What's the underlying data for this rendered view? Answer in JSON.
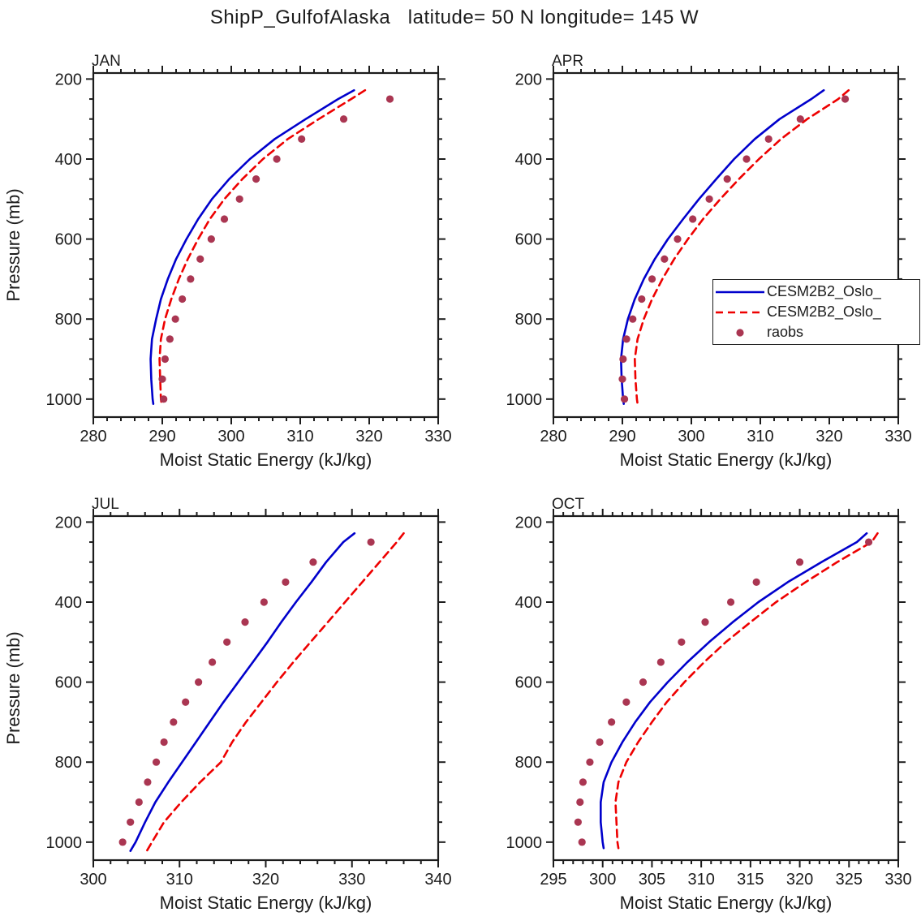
{
  "title": "ShipP_GulfofAlaska   latitude= 50 N longitude= 145 W",
  "colors": {
    "axis": "#1c1c1c",
    "text": "#1c1c1c",
    "model_solid": "#0000CC",
    "model_dashed": "#EE0000",
    "raobs": "#AA3652"
  },
  "legend": {
    "entries": [
      {
        "label": "CESM2B2_Oslo_",
        "style": "solid",
        "color": "#0000CC"
      },
      {
        "label": "CESM2B2_Oslo_",
        "style": "dashed",
        "color": "#EE0000"
      },
      {
        "label": "raobs",
        "style": "dot",
        "color": "#AA3652"
      }
    ]
  },
  "chart_data": [
    {
      "type": "line",
      "panel": "JAN",
      "xlabel": "Moist Static Energy (kJ/kg)",
      "ylabel": "Pressure (mb)",
      "show_ylabel": true,
      "xlim": [
        280,
        330
      ],
      "xtick_step": 10,
      "xminor_step": 2,
      "ylim": [
        185,
        1045
      ],
      "yticks": [
        200,
        400,
        600,
        800,
        1000
      ],
      "ytick_step": 200,
      "yminor_step": 50,
      "series": [
        {
          "name": "CESM2B2_Oslo_",
          "style": "solid",
          "color": "#0000CC",
          "pressure": [
            228,
            250,
            300,
            350,
            400,
            450,
            500,
            550,
            600,
            650,
            700,
            750,
            800,
            850,
            900,
            950,
            1000,
            1012
          ],
          "values": [
            317.8,
            315.5,
            310.8,
            306.3,
            302.7,
            299.7,
            297.2,
            295.2,
            293.5,
            292.0,
            290.8,
            289.8,
            289.1,
            288.5,
            288.3,
            288.4,
            288.6,
            288.7
          ]
        },
        {
          "name": "CESM2B2_Oslo_",
          "style": "dashed",
          "color": "#EE0000",
          "pressure": [
            228,
            250,
            300,
            350,
            400,
            450,
            500,
            550,
            600,
            650,
            700,
            750,
            800,
            850,
            900,
            950,
            1000,
            1012
          ],
          "values": [
            319.4,
            317.4,
            312.7,
            308.2,
            304.6,
            301.6,
            299.0,
            296.9,
            295.2,
            293.7,
            292.4,
            291.3,
            290.4,
            289.8,
            289.6,
            289.7,
            289.8,
            289.9
          ]
        },
        {
          "name": "raobs",
          "style": "dots",
          "color": "#AA3652",
          "pressure": [
            250,
            300,
            350,
            400,
            450,
            500,
            550,
            600,
            650,
            700,
            750,
            800,
            850,
            900,
            950,
            1000
          ],
          "values": [
            323.0,
            316.3,
            310.2,
            306.6,
            303.6,
            301.2,
            299.0,
            297.1,
            295.5,
            294.1,
            292.9,
            291.9,
            291.1,
            290.4,
            290.0,
            290.2
          ]
        }
      ]
    },
    {
      "type": "line",
      "panel": "APR",
      "xlabel": "Moist Static Energy (kJ/kg)",
      "ylabel": "Pressure (mb)",
      "show_ylabel": false,
      "xlim": [
        280,
        330
      ],
      "xtick_step": 10,
      "xminor_step": 2,
      "ylim": [
        185,
        1045
      ],
      "yticks": [
        200,
        400,
        600,
        800,
        1000
      ],
      "ytick_step": 200,
      "yminor_step": 50,
      "series": [
        {
          "name": "CESM2B2_Oslo_",
          "style": "solid",
          "color": "#0000CC",
          "pressure": [
            228,
            250,
            300,
            350,
            400,
            450,
            500,
            550,
            600,
            650,
            700,
            750,
            800,
            850,
            900,
            950,
            1000,
            1012
          ],
          "values": [
            319.2,
            317.4,
            312.8,
            309.2,
            306.2,
            303.6,
            301.1,
            298.8,
            296.6,
            294.7,
            293.1,
            291.8,
            290.8,
            290.1,
            289.8,
            289.9,
            290.1,
            290.2
          ]
        },
        {
          "name": "CESM2B2_Oslo_",
          "style": "dashed",
          "color": "#EE0000",
          "pressure": [
            228,
            250,
            300,
            350,
            400,
            450,
            500,
            550,
            600,
            650,
            700,
            750,
            800,
            850,
            900,
            950,
            1000,
            1012
          ],
          "values": [
            322.8,
            321.3,
            316.8,
            313.0,
            309.8,
            306.9,
            304.2,
            301.7,
            299.5,
            297.5,
            295.8,
            294.3,
            293.1,
            292.2,
            291.8,
            291.9,
            292.1,
            292.2
          ]
        },
        {
          "name": "raobs",
          "style": "dots",
          "color": "#AA3652",
          "pressure": [
            250,
            300,
            350,
            400,
            450,
            500,
            550,
            600,
            650,
            700,
            750,
            800,
            850,
            900,
            950,
            1000
          ],
          "values": [
            322.3,
            315.8,
            311.2,
            308.0,
            305.2,
            302.6,
            300.2,
            298.0,
            296.1,
            294.3,
            292.8,
            291.5,
            290.6,
            290.1,
            290.0,
            290.3
          ]
        }
      ]
    },
    {
      "type": "line",
      "panel": "JUL",
      "xlabel": "Moist Static Energy (kJ/kg)",
      "ylabel": "Pressure (mb)",
      "show_ylabel": true,
      "xlim": [
        300,
        340
      ],
      "xtick_step": 10,
      "xminor_step": 2,
      "ylim": [
        185,
        1045
      ],
      "yticks": [
        200,
        400,
        600,
        800,
        1000
      ],
      "ytick_step": 200,
      "yminor_step": 50,
      "series": [
        {
          "name": "CESM2B2_Oslo_",
          "style": "solid",
          "color": "#0000CC",
          "pressure": [
            228,
            250,
            300,
            350,
            400,
            450,
            500,
            550,
            600,
            650,
            700,
            750,
            800,
            850,
            900,
            950,
            1000,
            1022
          ],
          "values": [
            330.3,
            329.0,
            327.0,
            325.3,
            323.5,
            321.8,
            320.2,
            318.5,
            316.8,
            315.1,
            313.5,
            311.9,
            310.3,
            308.7,
            307.2,
            306.0,
            304.9,
            304.3
          ]
        },
        {
          "name": "CESM2B2_Oslo_",
          "style": "dashed",
          "color": "#EE0000",
          "pressure": [
            228,
            250,
            300,
            350,
            400,
            450,
            500,
            550,
            600,
            650,
            700,
            750,
            800,
            850,
            900,
            950,
            1000,
            1022
          ],
          "values": [
            336.0,
            335.2,
            333.2,
            331.2,
            329.2,
            327.2,
            325.2,
            323.2,
            321.3,
            319.5,
            317.7,
            316.1,
            314.8,
            312.4,
            310.2,
            308.2,
            306.8,
            306.2
          ]
        },
        {
          "name": "raobs",
          "style": "dots",
          "color": "#AA3652",
          "pressure": [
            250,
            300,
            350,
            400,
            450,
            500,
            550,
            600,
            650,
            700,
            750,
            800,
            850,
            900,
            950,
            1000
          ],
          "values": [
            332.2,
            325.5,
            322.3,
            319.8,
            317.6,
            315.5,
            313.8,
            312.2,
            310.7,
            309.3,
            308.2,
            307.3,
            306.3,
            305.3,
            304.3,
            303.4
          ]
        }
      ]
    },
    {
      "type": "line",
      "panel": "OCT",
      "xlabel": "Moist Static Energy (kJ/kg)",
      "ylabel": "Pressure (mb)",
      "show_ylabel": false,
      "xlim": [
        295,
        330
      ],
      "xtick_step": 5,
      "xminor_step": 1,
      "ylim": [
        185,
        1045
      ],
      "yticks": [
        200,
        400,
        600,
        800,
        1000
      ],
      "ytick_step": 200,
      "yminor_step": 50,
      "series": [
        {
          "name": "CESM2B2_Oslo_",
          "style": "solid",
          "color": "#0000CC",
          "pressure": [
            228,
            250,
            300,
            350,
            400,
            450,
            500,
            550,
            600,
            650,
            700,
            750,
            800,
            850,
            900,
            950,
            1000,
            1015
          ],
          "values": [
            326.8,
            325.8,
            322.2,
            318.8,
            315.8,
            313.2,
            310.8,
            308.6,
            306.6,
            304.8,
            303.3,
            302.0,
            300.9,
            300.1,
            299.8,
            299.8,
            300.0,
            300.1
          ]
        },
        {
          "name": "CESM2B2_Oslo_",
          "style": "dashed",
          "color": "#EE0000",
          "pressure": [
            228,
            250,
            300,
            350,
            400,
            450,
            500,
            550,
            600,
            650,
            700,
            750,
            800,
            850,
            900,
            950,
            1000,
            1015
          ],
          "values": [
            327.9,
            327.3,
            323.8,
            320.6,
            317.6,
            315.0,
            312.5,
            310.3,
            308.3,
            306.5,
            305.0,
            303.6,
            302.4,
            301.6,
            301.3,
            301.4,
            301.5,
            301.6
          ]
        },
        {
          "name": "raobs",
          "style": "dots",
          "color": "#AA3652",
          "pressure": [
            250,
            300,
            350,
            400,
            450,
            500,
            550,
            600,
            650,
            700,
            750,
            800,
            850,
            900,
            950,
            1000
          ],
          "values": [
            327.0,
            320.0,
            315.6,
            313.0,
            310.4,
            308.0,
            305.9,
            304.1,
            302.4,
            300.9,
            299.7,
            298.7,
            298.0,
            297.7,
            297.5,
            297.9
          ]
        }
      ]
    }
  ]
}
